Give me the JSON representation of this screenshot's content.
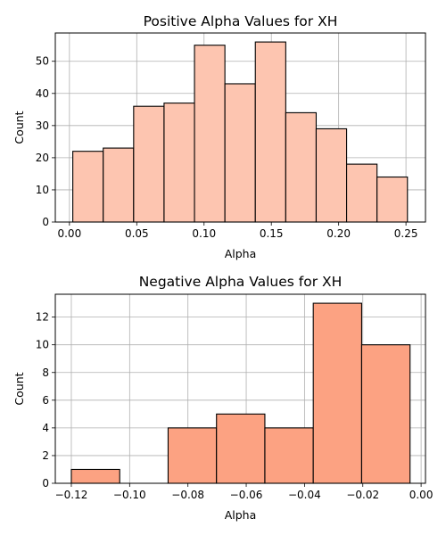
{
  "chart_data": [
    {
      "type": "bar",
      "title": "Positive Alpha Values for XH",
      "xlabel": "Alpha",
      "ylabel": "Count",
      "xlim": [
        -0.0105,
        0.2645
      ],
      "ylim": [
        0,
        58.8
      ],
      "xticks": [
        0.0,
        0.05,
        0.1,
        0.15,
        0.2,
        0.25
      ],
      "xtick_labels": [
        "0.00",
        "0.05",
        "0.10",
        "0.15",
        "0.20",
        "0.25"
      ],
      "yticks": [
        0,
        10,
        20,
        30,
        40,
        50
      ],
      "ytick_labels": [
        "0",
        "10",
        "20",
        "30",
        "40",
        "50"
      ],
      "grid": true,
      "color": "#fdc5b0",
      "bins": [
        {
          "start": 0.0025,
          "end": 0.0251,
          "value": 22
        },
        {
          "start": 0.0251,
          "end": 0.0477,
          "value": 23
        },
        {
          "start": 0.0477,
          "end": 0.0703,
          "value": 36
        },
        {
          "start": 0.0703,
          "end": 0.0929,
          "value": 37
        },
        {
          "start": 0.0929,
          "end": 0.1155,
          "value": 55
        },
        {
          "start": 0.1155,
          "end": 0.1381,
          "value": 43
        },
        {
          "start": 0.1381,
          "end": 0.1607,
          "value": 56
        },
        {
          "start": 0.1607,
          "end": 0.1833,
          "value": 34
        },
        {
          "start": 0.1833,
          "end": 0.2059,
          "value": 29
        },
        {
          "start": 0.2059,
          "end": 0.2285,
          "value": 18
        },
        {
          "start": 0.2285,
          "end": 0.2511,
          "value": 14
        }
      ]
    },
    {
      "type": "bar",
      "title": "Negative Alpha Values for XH",
      "xlabel": "Alpha",
      "ylabel": "Count",
      "xlim": [
        -0.1255,
        0.0015
      ],
      "ylim": [
        0,
        13.65
      ],
      "xticks": [
        -0.12,
        -0.1,
        -0.08,
        -0.06,
        -0.04,
        -0.02,
        0.0
      ],
      "xtick_labels": [
        "−0.12",
        "−0.10",
        "−0.08",
        "−0.06",
        "−0.04",
        "−0.02",
        "0.00"
      ],
      "yticks": [
        0,
        2,
        4,
        6,
        8,
        10,
        12
      ],
      "ytick_labels": [
        "0",
        "2",
        "4",
        "6",
        "8",
        "10",
        "12"
      ],
      "grid": true,
      "color": "#fca282",
      "bins": [
        {
          "start": -0.12,
          "end": -0.1034,
          "value": 1
        },
        {
          "start": -0.1034,
          "end": -0.0868,
          "value": 0
        },
        {
          "start": -0.0868,
          "end": -0.0702,
          "value": 4
        },
        {
          "start": -0.0702,
          "end": -0.0536,
          "value": 5
        },
        {
          "start": -0.0536,
          "end": -0.037,
          "value": 4
        },
        {
          "start": -0.037,
          "end": -0.0204,
          "value": 13
        },
        {
          "start": -0.0204,
          "end": -0.0038,
          "value": 10
        }
      ]
    }
  ]
}
